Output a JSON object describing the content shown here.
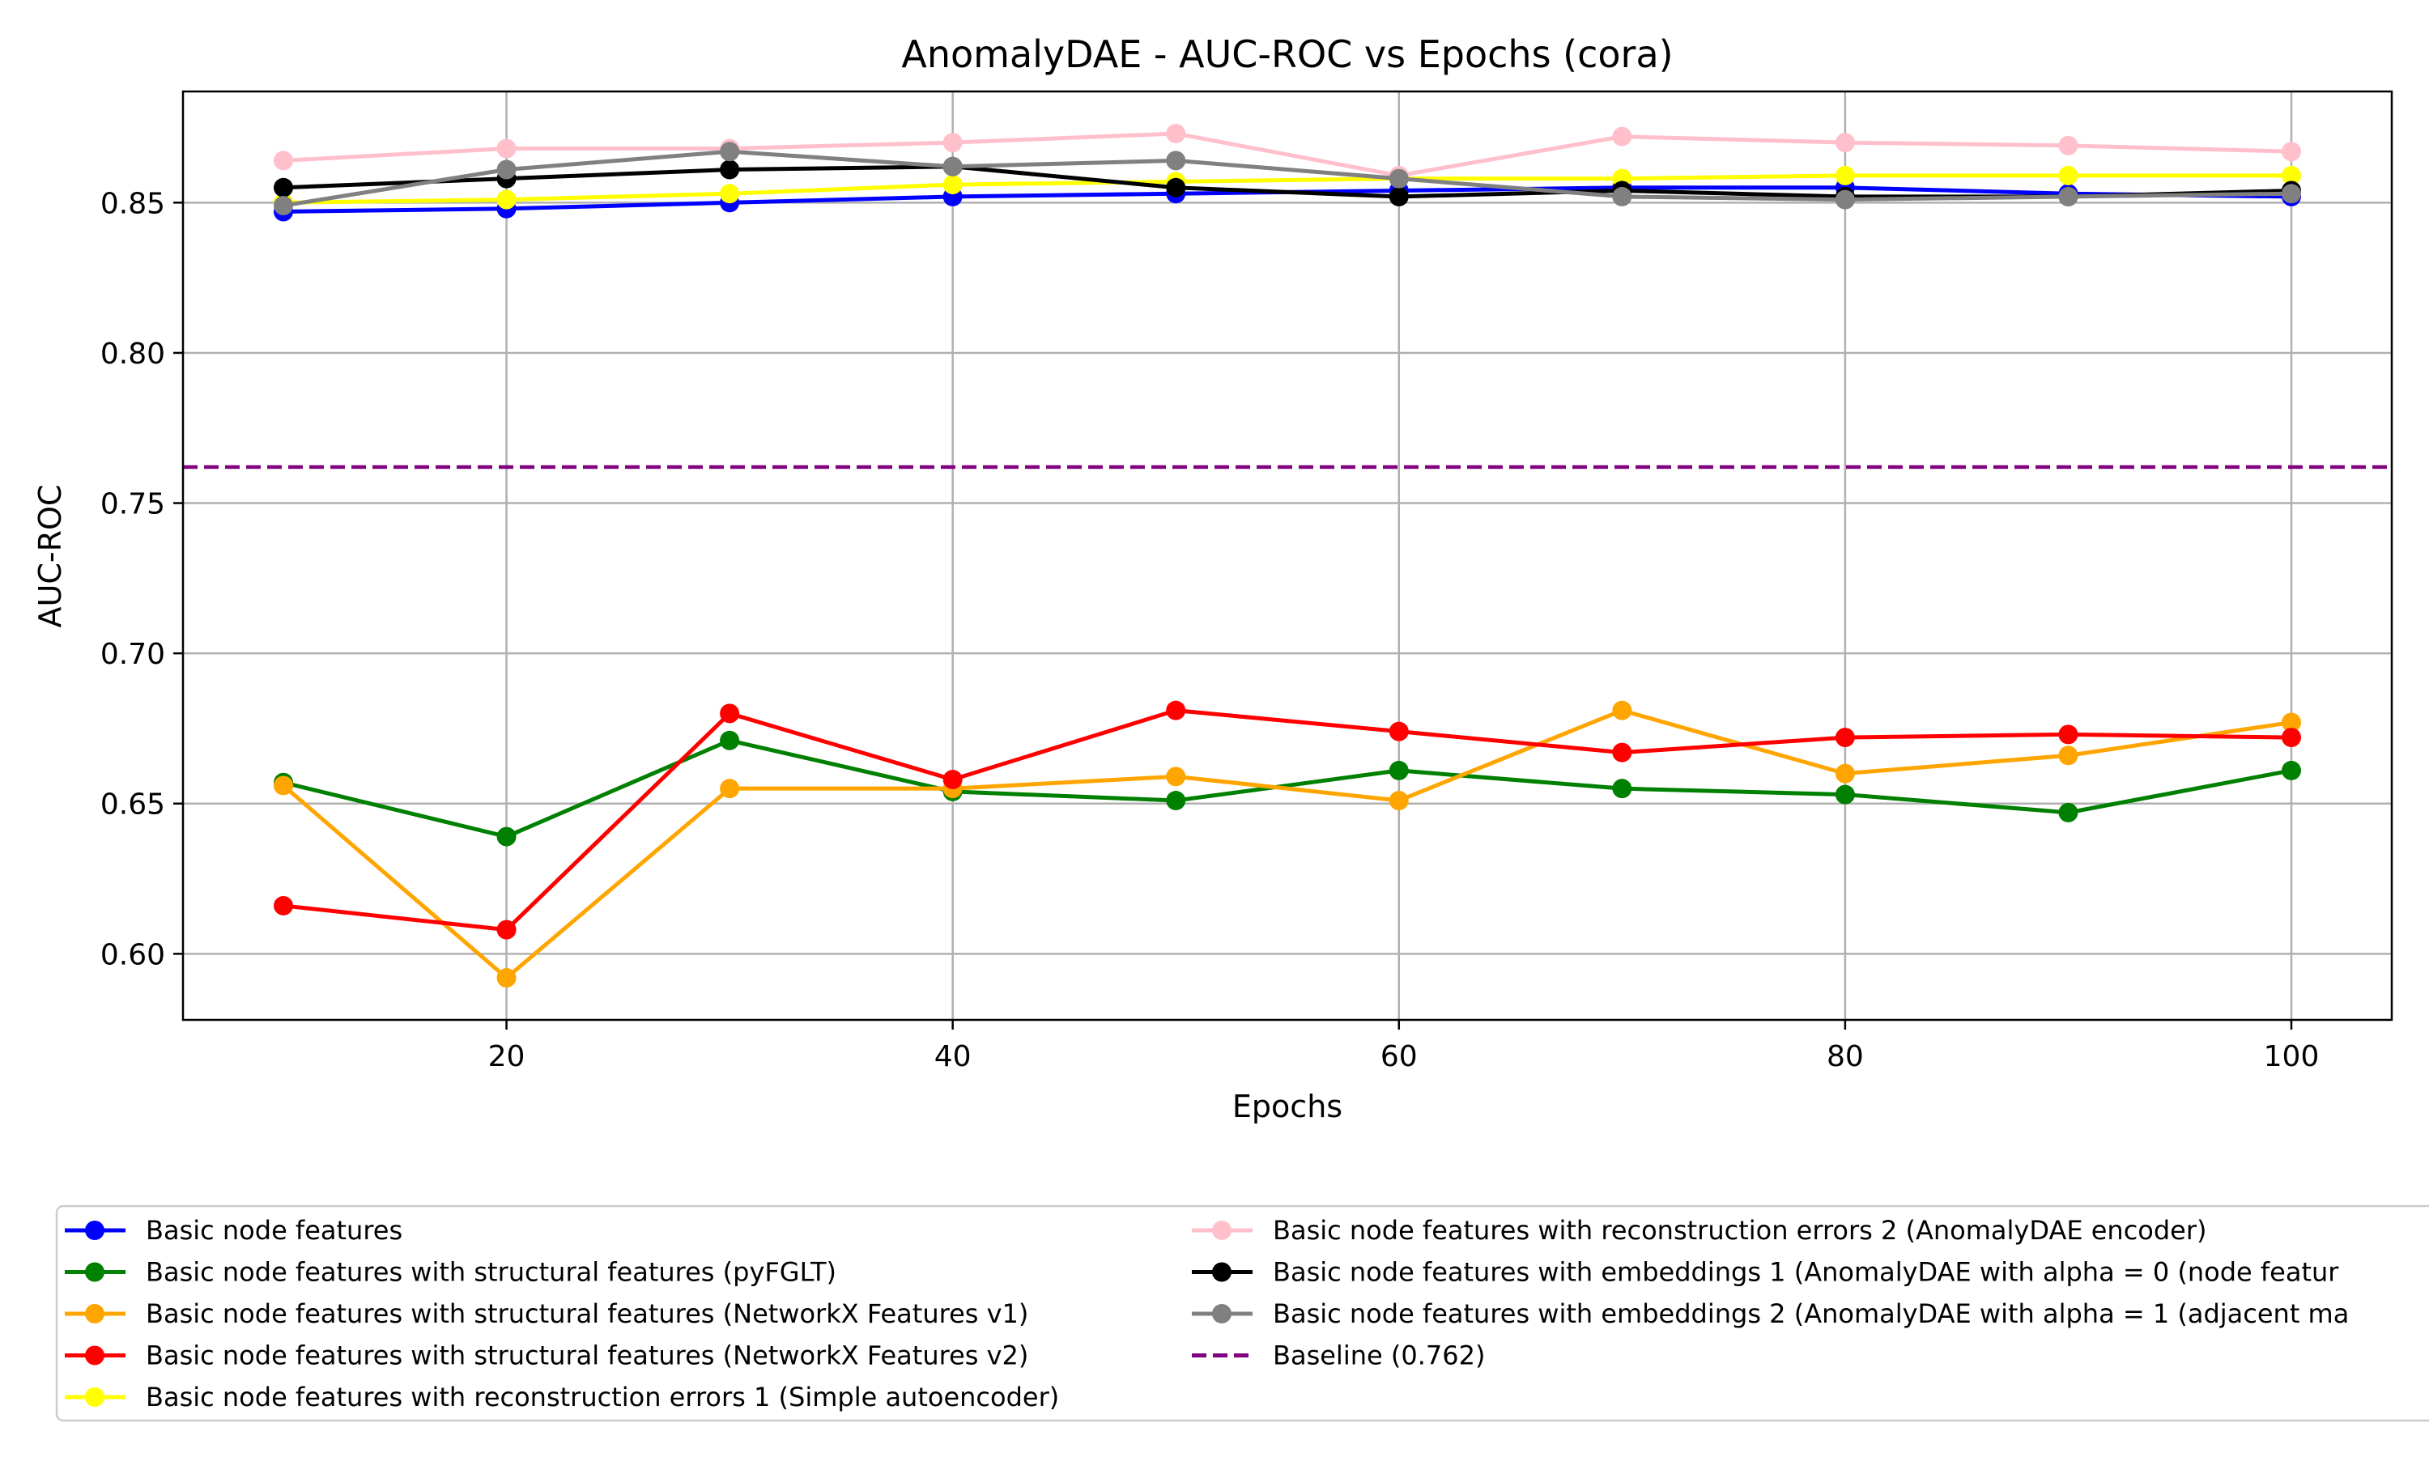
{
  "chart_data": {
    "type": "line",
    "title": "AnomalyDAE - AUC-ROC vs Epochs (cora)",
    "xlabel": "Epochs",
    "ylabel": "AUC-ROC",
    "xlim": [
      5.5,
      104.5
    ],
    "ylim": [
      0.578,
      0.887
    ],
    "xticks": [
      20,
      40,
      60,
      80,
      100
    ],
    "yticks": [
      0.6,
      0.65,
      0.7,
      0.75,
      0.8,
      0.85
    ],
    "grid": true,
    "legend_position": "bottom",
    "x": [
      10,
      20,
      30,
      40,
      50,
      60,
      70,
      80,
      90,
      100
    ],
    "series": [
      {
        "name": "Basic node features",
        "color": "#0000ff",
        "values": [
          0.847,
          0.848,
          0.85,
          0.852,
          0.853,
          0.854,
          0.855,
          0.855,
          0.853,
          0.852
        ]
      },
      {
        "name": "Basic node features with structural features (pyFGLT)",
        "color": "#008000",
        "values": [
          0.657,
          0.639,
          0.671,
          0.654,
          0.651,
          0.661,
          0.655,
          0.653,
          0.647,
          0.661
        ]
      },
      {
        "name": "Basic node features with structural features (NetworkX Features v1)",
        "color": "#ffa500",
        "values": [
          0.656,
          0.592,
          0.655,
          0.655,
          0.659,
          0.651,
          0.681,
          0.66,
          0.666,
          0.677
        ]
      },
      {
        "name": "Basic node features with structural features (NetworkX Features v2)",
        "color": "#ff0000",
        "values": [
          0.616,
          0.608,
          0.68,
          0.658,
          0.681,
          0.674,
          0.667,
          0.672,
          0.673,
          0.672
        ]
      },
      {
        "name": "Basic node features with reconstruction errors 1 (Simple autoencoder)",
        "color": "#ffff00",
        "values": [
          0.85,
          0.851,
          0.853,
          0.856,
          0.857,
          0.858,
          0.858,
          0.859,
          0.859,
          0.859
        ]
      },
      {
        "name": "Basic node features with reconstruction errors 2 (AnomalyDAE encoder)",
        "color": "#ffc0cb",
        "values": [
          0.864,
          0.868,
          0.868,
          0.87,
          0.873,
          0.859,
          0.872,
          0.87,
          0.869,
          0.867
        ]
      },
      {
        "name": "Basic node features with embeddings 1 (AnomalyDAE with alpha = 0 (node featur",
        "color": "#000000",
        "values": [
          0.855,
          0.858,
          0.861,
          0.862,
          0.855,
          0.852,
          0.854,
          0.852,
          0.852,
          0.854
        ]
      },
      {
        "name": "Basic node features with embeddings 2 (AnomalyDAE with alpha = 1 (adjacent ma",
        "color": "#808080",
        "values": [
          0.849,
          0.861,
          0.867,
          0.862,
          0.864,
          0.858,
          0.852,
          0.851,
          0.852,
          0.853
        ]
      }
    ],
    "baseline": {
      "name": "Baseline (0.762)",
      "value": 0.762,
      "color": "#800080"
    }
  }
}
